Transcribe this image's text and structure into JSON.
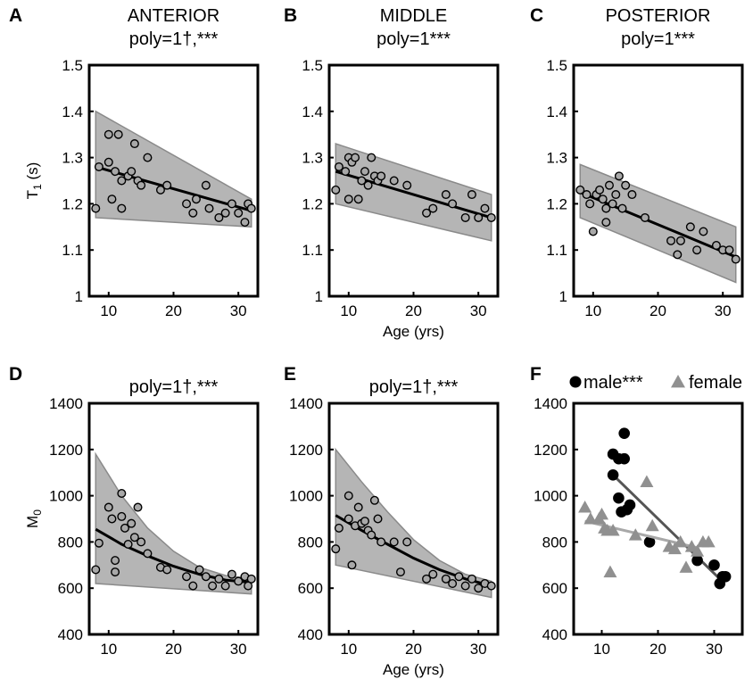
{
  "chart_data": [
    {
      "panel": "A",
      "type": "scatter",
      "title": "ANTERIOR",
      "subtitle": "poly=1†,***",
      "ylabel": "T",
      "ylabel_sub": "1",
      "ylabel_unit": " (s)",
      "xlabel": "",
      "xlim": [
        7,
        33
      ],
      "ylim": [
        1,
        1.5
      ],
      "xticks": [
        10,
        20,
        30
      ],
      "yticks": [
        1,
        1.1,
        1.2,
        1.3,
        1.4,
        1.5
      ],
      "band_upper": [
        [
          8,
          1.4
        ],
        [
          32,
          1.21
        ]
      ],
      "band_lower": [
        [
          8,
          1.17
        ],
        [
          32,
          1.15
        ]
      ],
      "fit": [
        [
          8,
          1.28
        ],
        [
          32,
          1.185
        ]
      ],
      "points": [
        [
          8,
          1.19
        ],
        [
          8.5,
          1.28
        ],
        [
          10,
          1.35
        ],
        [
          10,
          1.29
        ],
        [
          10.5,
          1.21
        ],
        [
          11,
          1.27
        ],
        [
          11.5,
          1.35
        ],
        [
          12,
          1.25
        ],
        [
          12,
          1.19
        ],
        [
          13,
          1.26
        ],
        [
          13.5,
          1.27
        ],
        [
          14,
          1.33
        ],
        [
          14.5,
          1.25
        ],
        [
          15,
          1.24
        ],
        [
          16,
          1.3
        ],
        [
          18,
          1.23
        ],
        [
          19,
          1.24
        ],
        [
          22,
          1.2
        ],
        [
          23,
          1.18
        ],
        [
          23.5,
          1.21
        ],
        [
          25,
          1.24
        ],
        [
          25.5,
          1.19
        ],
        [
          27,
          1.17
        ],
        [
          28,
          1.18
        ],
        [
          29,
          1.2
        ],
        [
          30,
          1.18
        ],
        [
          31,
          1.16
        ],
        [
          31.5,
          1.2
        ],
        [
          32,
          1.19
        ]
      ]
    },
    {
      "panel": "B",
      "type": "scatter",
      "title": "MIDDLE",
      "subtitle": "poly=1***",
      "ylabel": "",
      "xlabel": "Age (yrs)",
      "xlim": [
        7,
        33
      ],
      "ylim": [
        1,
        1.5
      ],
      "xticks": [
        10,
        20,
        30
      ],
      "yticks": [
        1,
        1.1,
        1.2,
        1.3,
        1.4,
        1.5
      ],
      "band_upper": [
        [
          8,
          1.33
        ],
        [
          32,
          1.22
        ]
      ],
      "band_lower": [
        [
          8,
          1.2
        ],
        [
          32,
          1.12
        ]
      ],
      "fit": [
        [
          8,
          1.27
        ],
        [
          32,
          1.17
        ]
      ],
      "points": [
        [
          8,
          1.23
        ],
        [
          8.5,
          1.28
        ],
        [
          9.5,
          1.27
        ],
        [
          10,
          1.3
        ],
        [
          10,
          1.21
        ],
        [
          10.5,
          1.29
        ],
        [
          11,
          1.3
        ],
        [
          11.5,
          1.21
        ],
        [
          12,
          1.25
        ],
        [
          12.5,
          1.27
        ],
        [
          13,
          1.24
        ],
        [
          13.5,
          1.3
        ],
        [
          14,
          1.26
        ],
        [
          14.5,
          1.25
        ],
        [
          15,
          1.26
        ],
        [
          17,
          1.25
        ],
        [
          19,
          1.24
        ],
        [
          22,
          1.18
        ],
        [
          23,
          1.19
        ],
        [
          25,
          1.22
        ],
        [
          26,
          1.2
        ],
        [
          28,
          1.17
        ],
        [
          29,
          1.22
        ],
        [
          30,
          1.17
        ],
        [
          31,
          1.19
        ],
        [
          32,
          1.17
        ]
      ]
    },
    {
      "panel": "C",
      "type": "scatter",
      "title": "POSTERIOR",
      "subtitle": "poly=1***",
      "ylabel": "",
      "xlabel": "",
      "xlim": [
        7,
        33
      ],
      "ylim": [
        1,
        1.5
      ],
      "xticks": [
        10,
        20,
        30
      ],
      "yticks": [
        1,
        1.1,
        1.2,
        1.3,
        1.4,
        1.5
      ],
      "band_upper": [
        [
          8,
          1.285
        ],
        [
          32,
          1.15
        ]
      ],
      "band_lower": [
        [
          8,
          1.17
        ],
        [
          32,
          1.03
        ]
      ],
      "fit": [
        [
          8,
          1.225
        ],
        [
          32,
          1.085
        ]
      ],
      "points": [
        [
          8,
          1.23
        ],
        [
          9,
          1.22
        ],
        [
          9.5,
          1.2
        ],
        [
          10,
          1.14
        ],
        [
          10.5,
          1.22
        ],
        [
          11,
          1.23
        ],
        [
          11.5,
          1.21
        ],
        [
          12,
          1.19
        ],
        [
          12,
          1.16
        ],
        [
          12.5,
          1.24
        ],
        [
          13,
          1.2
        ],
        [
          13.5,
          1.22
        ],
        [
          14,
          1.26
        ],
        [
          14.5,
          1.19
        ],
        [
          15,
          1.24
        ],
        [
          16,
          1.22
        ],
        [
          18,
          1.17
        ],
        [
          22,
          1.12
        ],
        [
          23,
          1.09
        ],
        [
          23.5,
          1.12
        ],
        [
          25,
          1.15
        ],
        [
          26,
          1.1
        ],
        [
          27,
          1.14
        ],
        [
          29,
          1.11
        ],
        [
          30,
          1.1
        ],
        [
          31,
          1.1
        ],
        [
          32,
          1.08
        ]
      ]
    },
    {
      "panel": "D",
      "type": "scatter",
      "title": "",
      "subtitle": "poly=1†,***",
      "ylabel": "M",
      "ylabel_sub": "0",
      "ylabel_unit": "",
      "xlabel": "",
      "xlim": [
        7,
        33
      ],
      "ylim": [
        400,
        1400
      ],
      "xticks": [
        10,
        20,
        30
      ],
      "yticks": [
        400,
        600,
        800,
        1000,
        1200,
        1400
      ],
      "band_upper": [
        [
          8,
          1180
        ],
        [
          12,
          1000
        ],
        [
          16,
          860
        ],
        [
          20,
          760
        ],
        [
          24,
          690
        ],
        [
          28,
          655
        ],
        [
          32,
          640
        ]
      ],
      "band_lower": [
        [
          8,
          620
        ],
        [
          32,
          575
        ]
      ],
      "fit": [
        [
          8,
          855
        ],
        [
          12,
          790
        ],
        [
          16,
          740
        ],
        [
          20,
          695
        ],
        [
          24,
          660
        ],
        [
          28,
          635
        ],
        [
          32,
          625
        ]
      ],
      "points": [
        [
          8,
          680
        ],
        [
          8.5,
          795
        ],
        [
          10,
          950
        ],
        [
          10.5,
          900
        ],
        [
          11,
          720
        ],
        [
          11,
          670
        ],
        [
          12,
          1010
        ],
        [
          12,
          910
        ],
        [
          12.5,
          860
        ],
        [
          13,
          790
        ],
        [
          13.5,
          880
        ],
        [
          14,
          820
        ],
        [
          14.5,
          950
        ],
        [
          15,
          800
        ],
        [
          16,
          750
        ],
        [
          18,
          690
        ],
        [
          19,
          680
        ],
        [
          22,
          650
        ],
        [
          23,
          610
        ],
        [
          24,
          680
        ],
        [
          25,
          650
        ],
        [
          26,
          610
        ],
        [
          27,
          640
        ],
        [
          28,
          610
        ],
        [
          29,
          660
        ],
        [
          30,
          630
        ],
        [
          31,
          650
        ],
        [
          31.5,
          610
        ],
        [
          32,
          640
        ]
      ]
    },
    {
      "panel": "E",
      "type": "scatter",
      "title": "",
      "subtitle": "poly=1†,***",
      "ylabel": "",
      "xlabel": "Age (yrs)",
      "xlim": [
        7,
        33
      ],
      "ylim": [
        400,
        1400
      ],
      "xticks": [
        10,
        20,
        30
      ],
      "yticks": [
        400,
        600,
        800,
        1000,
        1200,
        1400
      ],
      "band_upper": [
        [
          8,
          1200
        ],
        [
          12,
          1060
        ],
        [
          16,
          930
        ],
        [
          20,
          810
        ],
        [
          24,
          720
        ],
        [
          28,
          660
        ],
        [
          32,
          630
        ]
      ],
      "band_lower": [
        [
          8,
          700
        ],
        [
          32,
          560
        ]
      ],
      "fit": [
        [
          8,
          915
        ],
        [
          12,
          850
        ],
        [
          16,
          790
        ],
        [
          20,
          730
        ],
        [
          24,
          680
        ],
        [
          28,
          640
        ],
        [
          32,
          610
        ]
      ],
      "points": [
        [
          8,
          770
        ],
        [
          8.5,
          860
        ],
        [
          10,
          1000
        ],
        [
          10,
          900
        ],
        [
          10.5,
          700
        ],
        [
          11,
          870
        ],
        [
          11.5,
          950
        ],
        [
          12,
          880
        ],
        [
          12.5,
          890
        ],
        [
          13,
          850
        ],
        [
          13.5,
          830
        ],
        [
          14,
          980
        ],
        [
          14.5,
          900
        ],
        [
          15,
          800
        ],
        [
          17,
          800
        ],
        [
          18,
          670
        ],
        [
          19,
          800
        ],
        [
          22,
          640
        ],
        [
          23,
          660
        ],
        [
          25,
          640
        ],
        [
          26,
          620
        ],
        [
          27,
          650
        ],
        [
          28,
          610
        ],
        [
          29,
          640
        ],
        [
          30,
          600
        ],
        [
          31,
          620
        ],
        [
          32,
          610
        ]
      ]
    },
    {
      "panel": "F",
      "type": "scatter",
      "title": "",
      "ylabel": "",
      "xlabel": "",
      "xlim": [
        5,
        35
      ],
      "ylim": [
        400,
        1400
      ],
      "xticks": [
        10,
        20,
        30
      ],
      "yticks": [
        400,
        600,
        800,
        1000,
        1200,
        1400
      ],
      "legend": [
        {
          "marker": "circle",
          "label": "male***"
        },
        {
          "marker": "triangle",
          "label": "female"
        }
      ],
      "series": [
        {
          "name": "male***",
          "marker": "circle",
          "color": "#000000",
          "line_color": "#555555",
          "fit": [
            [
              12,
              1090
            ],
            [
              31,
              640
            ]
          ],
          "points": [
            [
              12,
              1180
            ],
            [
              12,
              1090
            ],
            [
              13,
              1160
            ],
            [
              13,
              990
            ],
            [
              14,
              1270
            ],
            [
              14,
              1160
            ],
            [
              14.5,
              940
            ],
            [
              15,
              960
            ],
            [
              13.5,
              930
            ],
            [
              18.5,
              800
            ],
            [
              27,
              720
            ],
            [
              30,
              700
            ],
            [
              31,
              620
            ],
            [
              31.5,
              650
            ],
            [
              32,
              650
            ]
          ]
        },
        {
          "name": "female",
          "marker": "triangle",
          "color": "#909090",
          "line_color": "#a8a8a8",
          "fit": [
            [
              7,
              890
            ],
            [
              27,
              775
            ]
          ],
          "points": [
            [
              7,
              950
            ],
            [
              8,
              900
            ],
            [
              9.5,
              900
            ],
            [
              10,
              920
            ],
            [
              10.5,
              860
            ],
            [
              11,
              850
            ],
            [
              11.5,
              670
            ],
            [
              12,
              850
            ],
            [
              16,
              830
            ],
            [
              18,
              1060
            ],
            [
              19,
              870
            ],
            [
              22,
              780
            ],
            [
              23,
              770
            ],
            [
              24,
              800
            ],
            [
              25,
              690
            ],
            [
              26,
              780
            ],
            [
              27,
              760
            ],
            [
              28,
              800
            ],
            [
              29,
              800
            ]
          ]
        }
      ]
    }
  ]
}
